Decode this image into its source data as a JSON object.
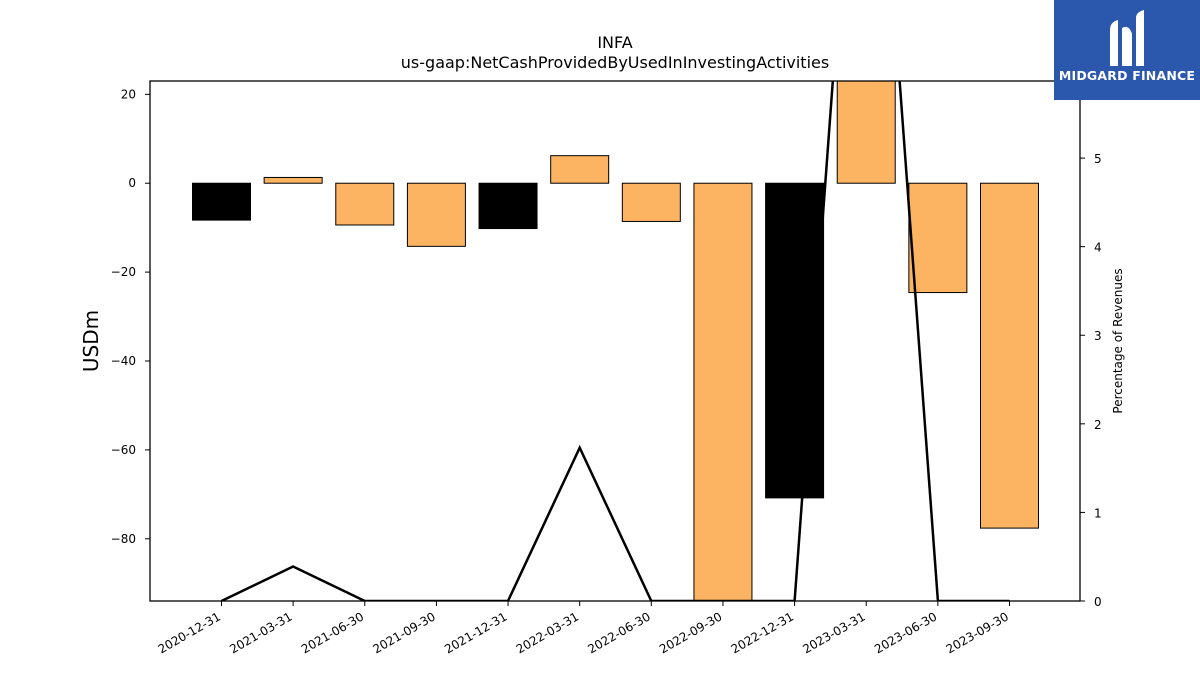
{
  "chart_data": {
    "type": "bar",
    "title": "INFA",
    "subtitle": "us-gaap:NetCashProvidedByUsedInInvestingActivities",
    "ylabel": "USDm",
    "y2label": "Percentage of Revenues",
    "ylim": [
      -94,
      23
    ],
    "y2lim": [
      0,
      5.87
    ],
    "yticks": [
      20,
      0,
      -20,
      -40,
      -60,
      -80
    ],
    "ytick_labels": [
      "20",
      "0",
      "−20",
      "−40",
      "−60",
      "−80"
    ],
    "y2ticks": [
      0,
      1,
      2,
      3,
      4,
      5
    ],
    "y2tick_labels": [
      "0",
      "1",
      "2",
      "3",
      "4",
      "5"
    ],
    "categories": [
      "2020-12-31",
      "2021-03-31",
      "2021-06-30",
      "2021-09-30",
      "2021-12-31",
      "2022-03-31",
      "2022-06-30",
      "2022-09-30",
      "2022-12-31",
      "2023-03-31",
      "2023-06-30",
      "2023-09-30"
    ],
    "values": [
      -8.3,
      1.3,
      -9.4,
      -14.2,
      -10.2,
      6.2,
      -8.6,
      -100,
      -70.8,
      29.5,
      -24.6,
      -77.6
    ],
    "bar_colors": [
      "#000000",
      "#fdb462",
      "#fdb462",
      "#fdb462",
      "#000000",
      "#fdb462",
      "#fdb462",
      "#fdb462",
      "#000000",
      "#fdb462",
      "#fdb462",
      "#fdb462"
    ],
    "line_series": {
      "values": [
        null,
        0.39,
        null,
        null,
        null,
        1.73,
        null,
        null,
        null,
        11.0,
        null,
        null
      ]
    },
    "grid": false
  },
  "logo": {
    "text": "MIDGARD FINANCE",
    "bg_color": "#2b57ad"
  }
}
